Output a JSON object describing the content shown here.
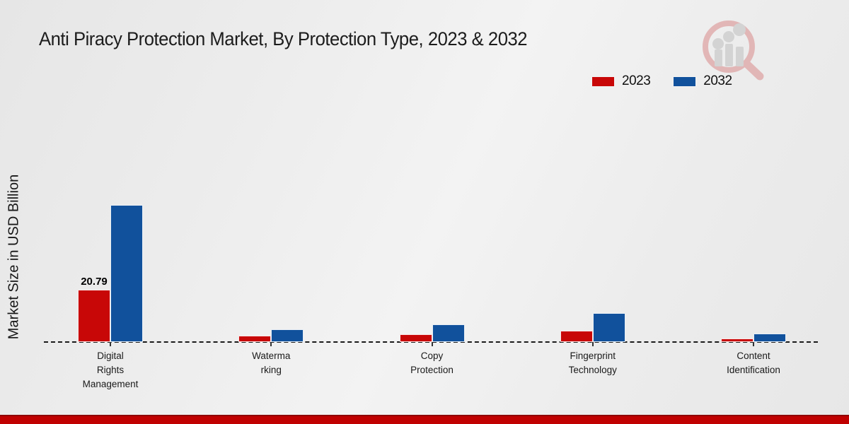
{
  "title": "Anti Piracy Protection Market, By Protection Type, 2023 & 2032",
  "y_axis_label": "Market Size in USD Billion",
  "legend": {
    "items": [
      {
        "label": "2023",
        "color": "#c80707"
      },
      {
        "label": "2032",
        "color": "#11519c"
      }
    ]
  },
  "logo": {
    "name": "market-research-magnifier-logo",
    "glass_color": "#d98f8f",
    "bars_color": "#c6c6c6"
  },
  "footer": {
    "band_color": "#c00000",
    "band_top_color": "#8f0404"
  },
  "chart_data": {
    "type": "bar",
    "title": "Anti Piracy Protection Market, By Protection Type, 2023 & 2032",
    "xlabel": "",
    "ylabel": "Market Size in USD Billion",
    "categories": [
      "Digital Rights Management",
      "Watermarking",
      "Copy Protection",
      "Fingerprint Technology",
      "Content Identification"
    ],
    "category_label_lines": [
      [
        "Digital",
        "Rights",
        "Management"
      ],
      [
        "Waterma",
        "rking"
      ],
      [
        "Copy",
        "Protection"
      ],
      [
        "Fingerprint",
        "Technology"
      ],
      [
        "Content",
        "Identification"
      ]
    ],
    "series": [
      {
        "name": "2023",
        "color": "#c80707",
        "values": [
          20.79,
          2.4,
          3.1,
          4.5,
          1.4
        ]
      },
      {
        "name": "2032",
        "color": "#11519c",
        "values": [
          54.5,
          5.1,
          7.0,
          11.5,
          3.4
        ]
      }
    ],
    "value_labels": [
      {
        "series": "2023",
        "category_index": 0,
        "text": "20.79"
      }
    ],
    "ylim": [
      0,
      60
    ],
    "y_axis_ticks_visible": false,
    "grid": false,
    "legend_position": "top-right",
    "baseline_style": "dashed"
  }
}
